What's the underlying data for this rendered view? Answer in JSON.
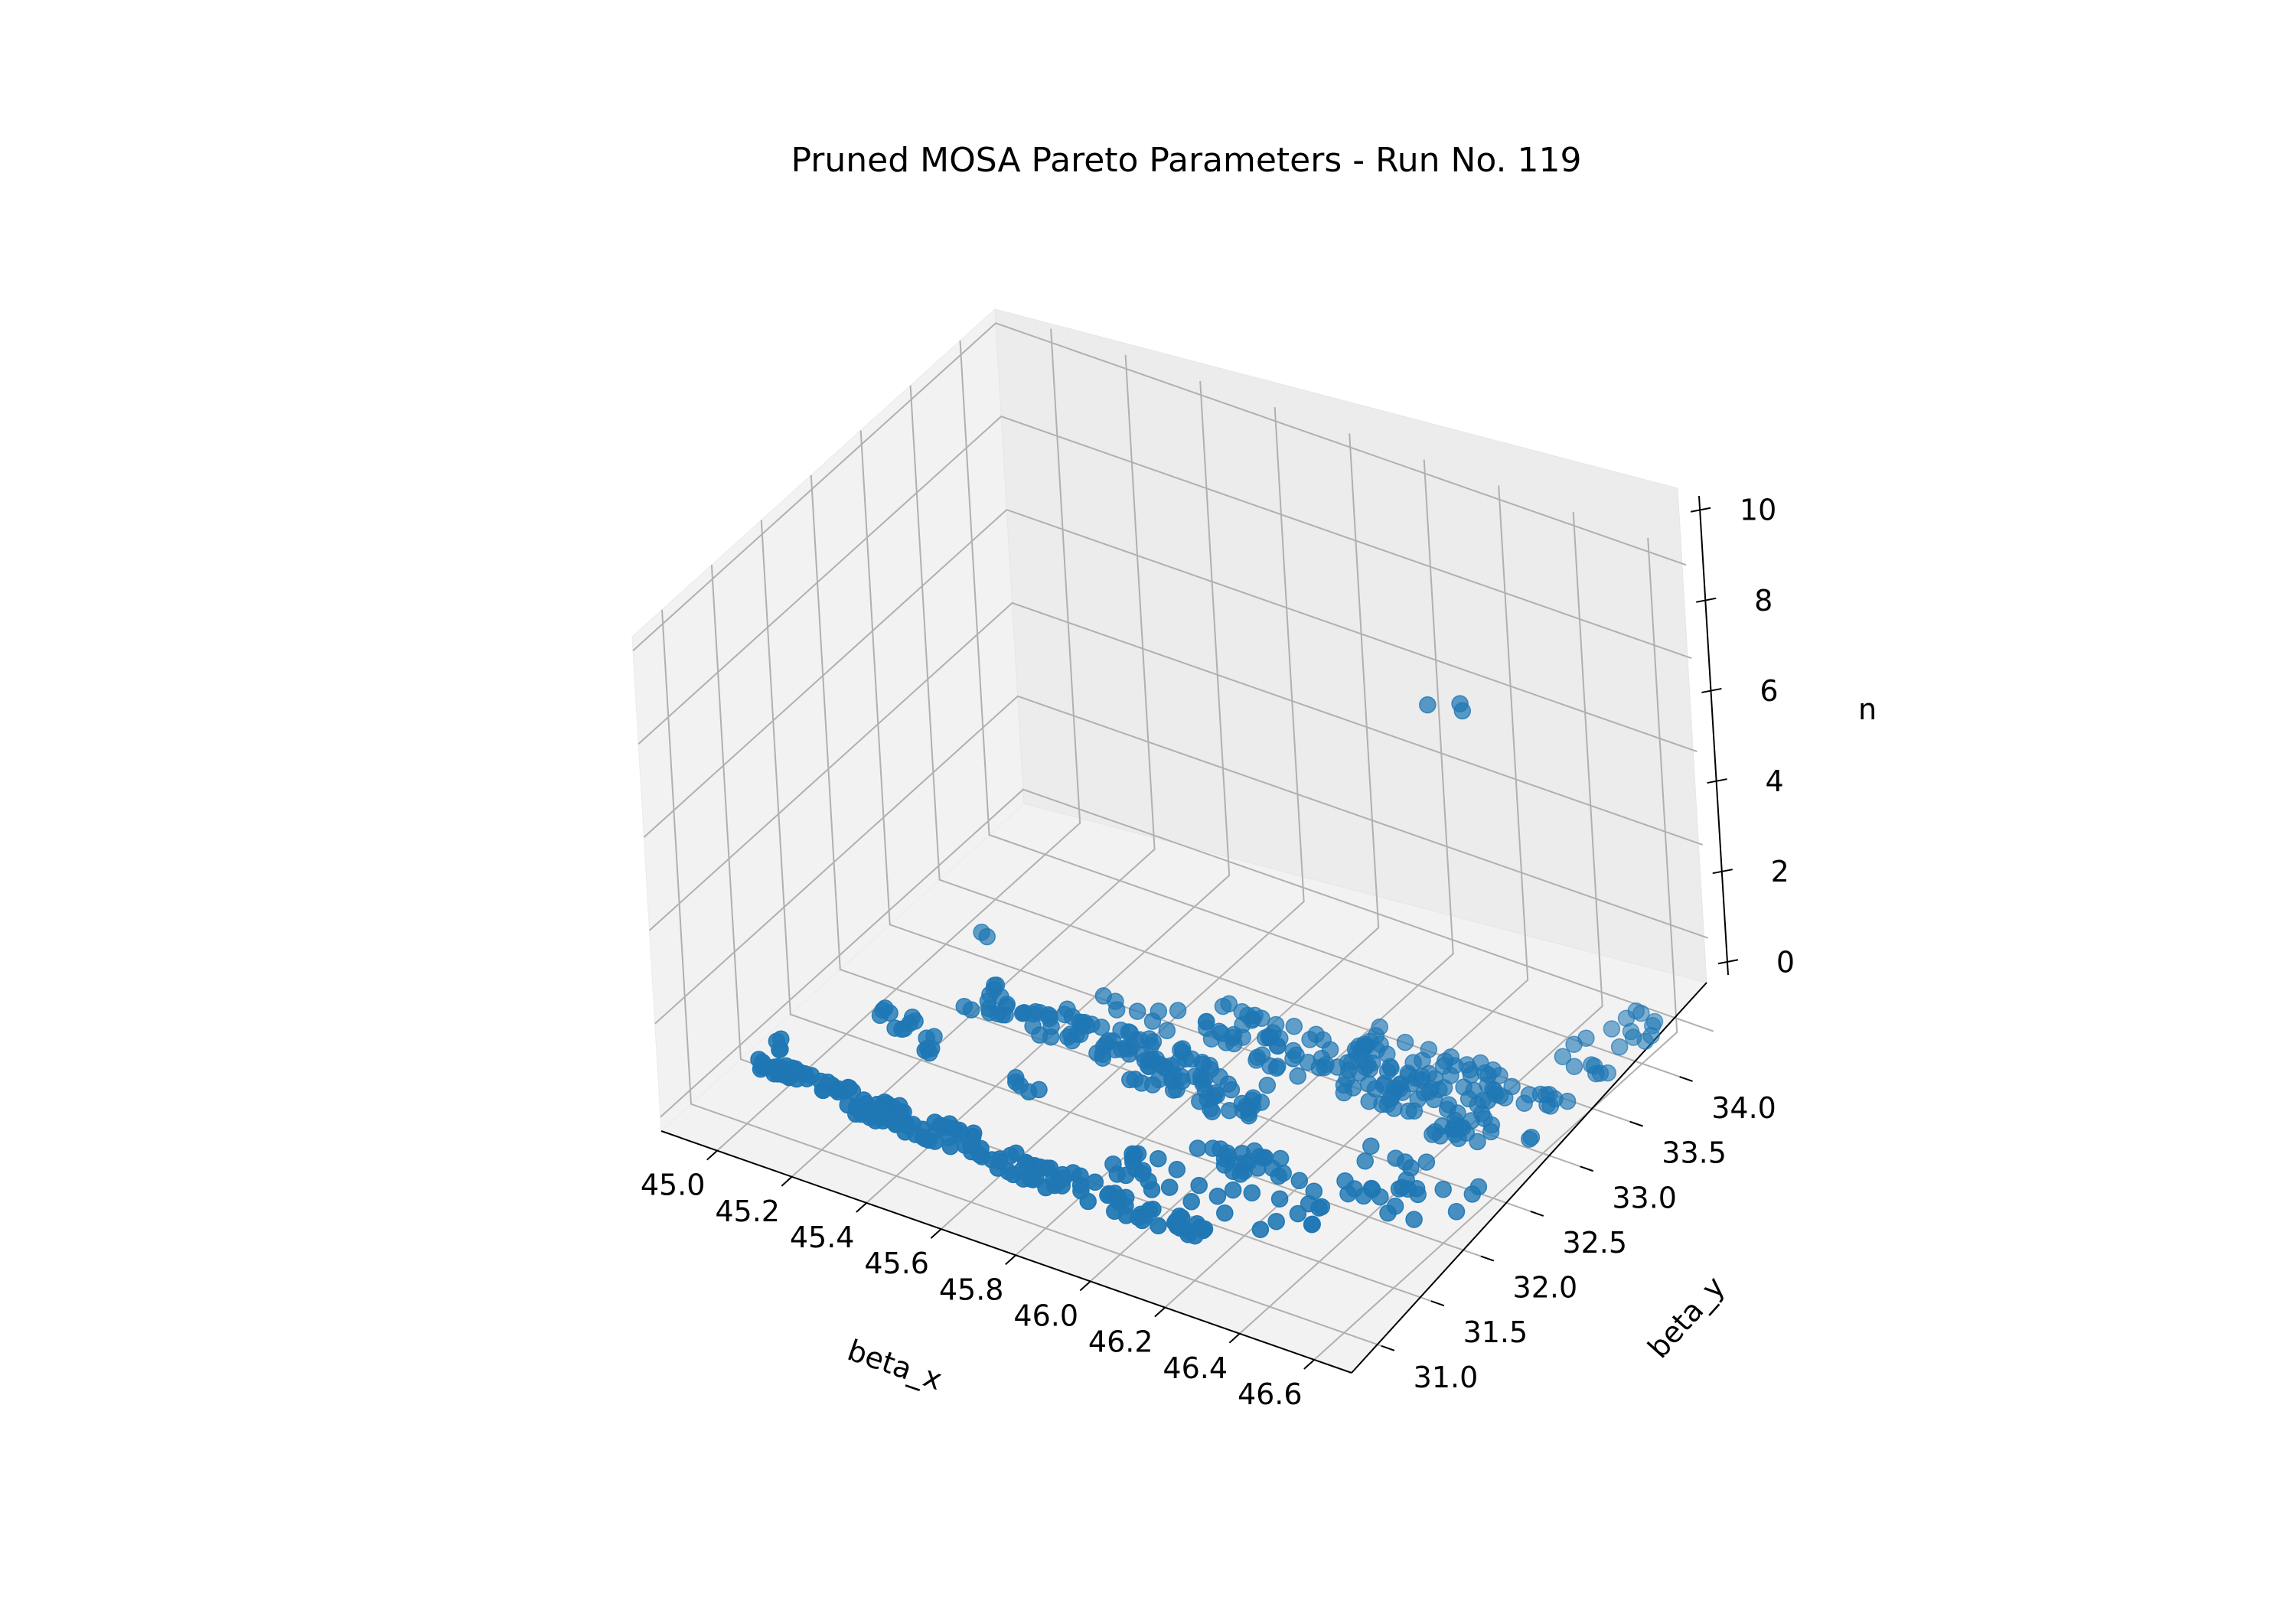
{
  "chart_data": {
    "type": "scatter",
    "projection": "3d",
    "title": "Pruned MOSA Pareto Parameters - Run No. 119",
    "xlabel": "beta_x",
    "ylabel": "beta_y",
    "zlabel": "n",
    "xlim": [
      44.85,
      46.7
    ],
    "ylim": [
      30.7,
      34.35
    ],
    "zlim": [
      -0.3,
      10.3
    ],
    "xticks": [
      45.0,
      45.2,
      45.4,
      45.6,
      45.8,
      46.0,
      46.2,
      46.4,
      46.6
    ],
    "xtick_labels": [
      "45.0",
      "45.2",
      "45.4",
      "45.6",
      "45.8",
      "46.0",
      "46.2",
      "46.4",
      "46.6"
    ],
    "yticks": [
      31.0,
      31.5,
      32.0,
      32.5,
      33.0,
      33.5,
      34.0
    ],
    "ytick_labels": [
      "31.0",
      "31.5",
      "32.0",
      "32.5",
      "33.0",
      "33.5",
      "34.0"
    ],
    "zticks": [
      0,
      2,
      4,
      6,
      8,
      10
    ],
    "ztick_labels": [
      "0",
      "2",
      "4",
      "6",
      "8",
      "10"
    ],
    "grid": true,
    "legend": "none",
    "marker_color": "#1f77b4",
    "point_size": 30,
    "series": [
      {
        "clusters": [
          {
            "x": [
              45.02,
              45.12
            ],
            "y": [
              31.0,
              31.1
            ],
            "z": [
              1,
              1
            ],
            "count": 18
          },
          {
            "x": [
              45.08,
              45.28
            ],
            "y": [
              31.0,
              31.1
            ],
            "z": [
              1,
              1
            ],
            "count": 22
          },
          {
            "x": [
              45.28,
              45.55
            ],
            "y": [
              30.9,
              31.1
            ],
            "z": [
              1,
              1
            ],
            "count": 45
          },
          {
            "x": [
              45.55,
              45.72
            ],
            "y": [
              30.9,
              31.1
            ],
            "z": [
              1,
              1
            ],
            "count": 18
          },
          {
            "x": [
              45.7,
              45.8
            ],
            "y": [
              30.85,
              31.05
            ],
            "z": [
              1,
              1
            ],
            "count": 10
          },
          {
            "x": [
              45.8,
              46.0
            ],
            "y": [
              30.85,
              31.05
            ],
            "z": [
              1,
              1
            ],
            "count": 18
          },
          {
            "x": [
              45.95,
              46.25
            ],
            "y": [
              30.85,
              31.0
            ],
            "z": [
              1,
              1
            ],
            "count": 30
          },
          {
            "x": [
              45.92,
              46.08
            ],
            "y": [
              31.15,
              31.45
            ],
            "z": [
              1,
              1
            ],
            "count": 14
          },
          {
            "x": [
              46.05,
              46.45
            ],
            "y": [
              31.1,
              31.65
            ],
            "z": [
              1,
              1
            ],
            "count": 24
          },
          {
            "x": [
              46.38,
              46.7
            ],
            "y": [
              31.6,
              32.15
            ],
            "z": [
              1,
              1
            ],
            "count": 26
          },
          {
            "x": [
              46.05,
              46.3
            ],
            "y": [
              31.5,
              31.75
            ],
            "z": [
              1,
              1
            ],
            "count": 18
          },
          {
            "x": [
              45.95,
              46.05
            ],
            "y": [
              31.9,
              32.1
            ],
            "z": [
              1,
              1
            ],
            "count": 8
          },
          {
            "x": [
              45.15,
              45.25
            ],
            "y": [
              31.7,
              31.85
            ],
            "z": [
              1,
              1
            ],
            "count": 10
          },
          {
            "x": [
              45.3,
              45.4
            ],
            "y": [
              31.6,
              31.75
            ],
            "z": [
              1,
              1
            ],
            "count": 6
          },
          {
            "x": [
              45.55,
              45.65
            ],
            "y": [
              31.55,
              31.65
            ],
            "z": [
              1,
              1
            ],
            "count": 5
          },
          {
            "x": [
              45.3,
              45.75
            ],
            "y": [
              32.05,
              32.35
            ],
            "z": [
              1,
              1
            ],
            "count": 55
          },
          {
            "x": [
              45.65,
              45.85
            ],
            "y": [
              32.15,
              32.35
            ],
            "z": [
              1,
              1
            ],
            "count": 18
          },
          {
            "x": [
              45.75,
              46.1
            ],
            "y": [
              31.95,
              32.3
            ],
            "z": [
              1,
              1
            ],
            "count": 45
          },
          {
            "x": [
              45.8,
              46.35
            ],
            "y": [
              32.45,
              32.85
            ],
            "z": [
              1,
              1
            ],
            "count": 80
          },
          {
            "x": [
              46.15,
              46.55
            ],
            "y": [
              32.7,
              33.1
            ],
            "z": [
              1,
              1
            ],
            "count": 45
          },
          {
            "x": [
              46.3,
              46.6
            ],
            "y": [
              32.35,
              32.7
            ],
            "z": [
              1,
              1
            ],
            "count": 35
          },
          {
            "x": [
              46.45,
              46.7
            ],
            "y": [
              32.85,
              33.05
            ],
            "z": [
              1,
              1
            ],
            "count": 14
          },
          {
            "x": [
              46.55,
              46.7
            ],
            "y": [
              33.3,
              33.6
            ],
            "z": [
              1,
              1
            ],
            "count": 10
          },
          {
            "x": [
              46.6,
              46.7
            ],
            "y": [
              33.7,
              34.0
            ],
            "z": [
              1,
              1
            ],
            "count": 10
          },
          {
            "x": [
              45.55,
              45.75
            ],
            "y": [
              32.45,
              32.65
            ],
            "z": [
              1,
              1
            ],
            "count": 8
          },
          {
            "x": [
              45.0,
              45.05
            ],
            "y": [
              31.15,
              31.3
            ],
            "z": [
              1,
              1
            ],
            "count": 4
          }
        ],
        "points": [
          {
            "x": 46.5,
            "y": 32.5,
            "z": 10
          },
          {
            "x": 46.56,
            "y": 32.6,
            "z": 10
          },
          {
            "x": 46.58,
            "y": 32.55,
            "z": 10
          },
          {
            "x": 46.68,
            "y": 32.62,
            "z": 1
          },
          {
            "x": 46.68,
            "y": 32.6,
            "z": 1
          },
          {
            "x": 45.18,
            "y": 32.72,
            "z": 1
          },
          {
            "x": 45.2,
            "y": 32.7,
            "z": 1
          }
        ]
      }
    ]
  }
}
